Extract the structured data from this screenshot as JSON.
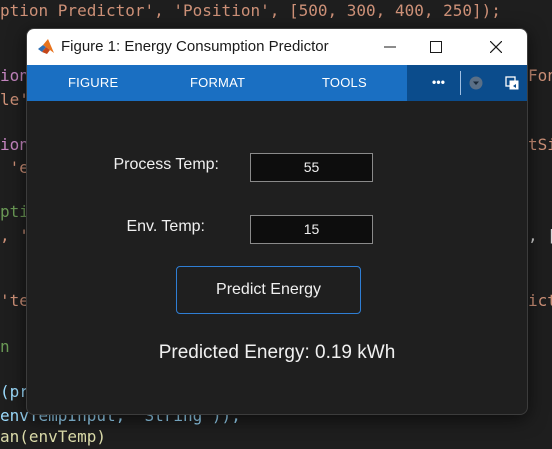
{
  "editor": {
    "lines": [
      {
        "segments": [
          {
            "t": "ption Predictor', 'Position', [500, 300, 400, 250]);",
            "c": "c-str"
          }
        ]
      },
      {
        "segments": [
          {
            "t": "ion",
            "c": "c-pur"
          }
        ]
      },
      {
        "segments": [
          {
            "t": "le'",
            "c": "c-str"
          }
        ]
      },
      {
        "segments": [
          {
            "t": "ion",
            "c": "c-pur"
          }
        ]
      },
      {
        "segments": [
          {
            "t": " 'e",
            "c": "c-str"
          }
        ]
      },
      {
        "segments": [
          {
            "t": "pti",
            "c": "c-grn"
          }
        ]
      },
      {
        "segments": [
          {
            "t": ", '",
            "c": "c-str"
          }
        ]
      },
      {
        "segments": [
          {
            "t": "'te",
            "c": "c-str"
          }
        ]
      },
      {
        "segments": [
          {
            "t": "n",
            "c": "c-grn"
          }
        ]
      },
      {
        "segments": [
          {
            "t": "(pr",
            "c": "c-var"
          }
        ]
      },
      {
        "segments": [
          {
            "t": "envTempInput, 'String'));",
            "c": "c-var"
          }
        ]
      },
      {
        "segments": [
          {
            "t": "an(envTemp)",
            "c": "c-fn"
          }
        ]
      }
    ],
    "right_fragments": [
      "Font",
      "tSiz",
      ", [1",
      "icte"
    ]
  },
  "window": {
    "title": "Figure 1: Energy Consumption Predictor",
    "toolbar": {
      "tabs": [
        "FIGURE",
        "FORMAT",
        "TOOLS"
      ],
      "more_label": "•••"
    }
  },
  "form": {
    "process_temp_label": "Process Temp:",
    "process_temp_value": "55",
    "env_temp_label": "Env. Temp:",
    "env_temp_value": "15",
    "predict_button": "Predict Energy",
    "result_text": "Predicted Energy: 0.19 kWh"
  },
  "colors": {
    "toolbar": "#1a6fc2",
    "toolbar_dark": "#0b4c8c",
    "button_border": "#2f7ed4",
    "background": "#1f1f1f"
  }
}
